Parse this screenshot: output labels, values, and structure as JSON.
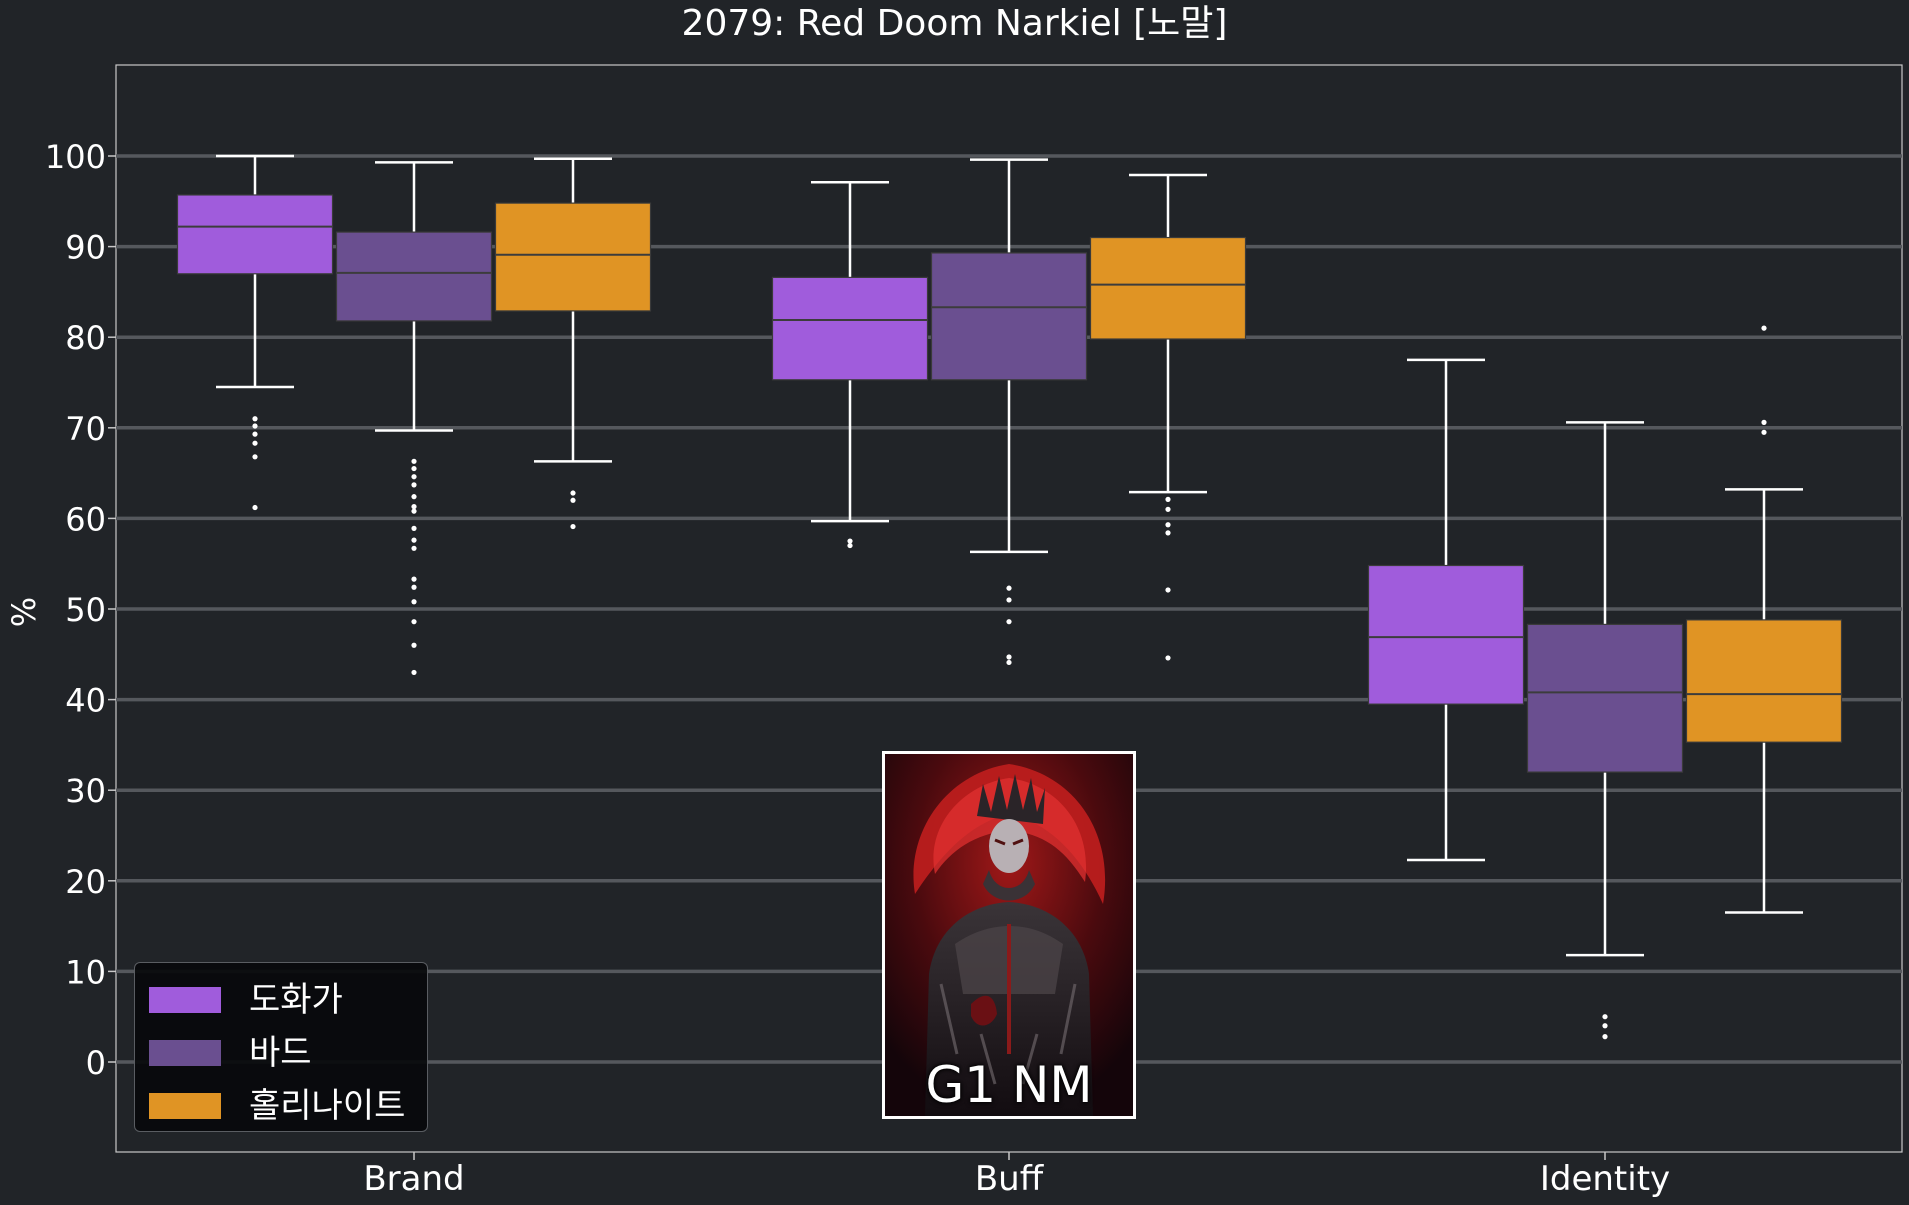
{
  "chart_data": {
    "type": "box",
    "title": "2079: Red Doom Narkiel [노말]",
    "xlabel": "",
    "ylabel": "%",
    "ylim": [
      -10,
      110
    ],
    "yticks": [
      0,
      10,
      20,
      30,
      40,
      50,
      60,
      70,
      80,
      90,
      100
    ],
    "categories": [
      "Brand",
      "Buff",
      "Identity"
    ],
    "grid": "horizontal",
    "legend_position": "bottom-left",
    "series": [
      {
        "name": "도화가",
        "color": "#a05cdc",
        "boxes": [
          {
            "whislo": 74.5,
            "q1": 87.0,
            "med": 92.2,
            "q3": 95.7,
            "whishi": 100.0,
            "fliers": [
              71.0,
              70.2,
              69.3,
              68.3,
              66.8,
              61.2
            ]
          },
          {
            "whislo": 59.7,
            "q1": 75.3,
            "med": 81.9,
            "q3": 86.6,
            "whishi": 97.1,
            "fliers": [
              57.5,
              57.0
            ]
          },
          {
            "whislo": 22.3,
            "q1": 39.5,
            "med": 46.9,
            "q3": 54.8,
            "whishi": 77.5,
            "fliers": []
          }
        ]
      },
      {
        "name": "바드",
        "color": "#6a4f90",
        "boxes": [
          {
            "whislo": 69.7,
            "q1": 81.8,
            "med": 87.1,
            "q3": 91.6,
            "whishi": 99.3,
            "fliers": [
              66.3,
              65.5,
              64.6,
              63.7,
              62.4,
              61.3,
              60.8,
              58.9,
              57.6,
              56.7,
              53.3,
              52.4,
              50.8,
              48.6,
              46.0,
              43.0
            ]
          },
          {
            "whislo": 56.3,
            "q1": 75.3,
            "med": 83.3,
            "q3": 89.3,
            "whishi": 99.6,
            "fliers": [
              52.3,
              51.0,
              48.6,
              44.7,
              44.1
            ]
          },
          {
            "whislo": 11.8,
            "q1": 32.0,
            "med": 40.8,
            "q3": 48.3,
            "whishi": 70.6,
            "fliers": [
              5.0,
              4.0,
              2.8
            ]
          }
        ]
      },
      {
        "name": "홀리나이트",
        "color": "#e09424",
        "boxes": [
          {
            "whislo": 66.3,
            "q1": 82.9,
            "med": 89.1,
            "q3": 94.8,
            "whishi": 99.7,
            "fliers": [
              62.8,
              62.0,
              59.1
            ]
          },
          {
            "whislo": 62.9,
            "q1": 79.8,
            "med": 85.8,
            "q3": 91.0,
            "whishi": 97.9,
            "fliers": [
              62.1,
              61.0,
              59.3,
              58.4,
              52.1,
              44.6
            ]
          },
          {
            "whislo": 16.5,
            "q1": 35.3,
            "med": 40.6,
            "q3": 48.8,
            "whishi": 63.2,
            "fliers": [
              81.0,
              70.6,
              69.5
            ]
          }
        ]
      }
    ]
  },
  "portrait": {
    "caption": "G1 NM",
    "icon": "boss-portrait-image"
  },
  "colors": {
    "background": "#212428",
    "gridline": "#55585d",
    "axes_frame": "#c8c8c8",
    "whisker": "#ffffff",
    "median": "#3c3c3c"
  }
}
